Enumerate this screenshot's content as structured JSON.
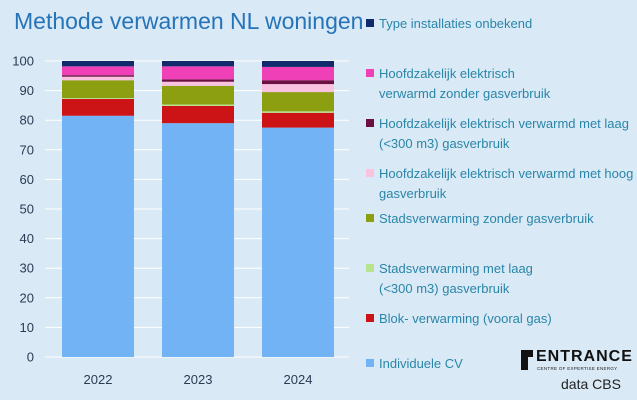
{
  "title": "Methode verwarmen NL woningen",
  "source": "data CBS",
  "logo": {
    "name": "ENTRANCE",
    "tagline": "CENTRE OF EXPERTISE ENERGY"
  },
  "chart_data": {
    "type": "bar",
    "stacked": true,
    "categories": [
      "2022",
      "2023",
      "2024"
    ],
    "ylim": [
      0,
      100
    ],
    "yticks": [
      0,
      10,
      20,
      30,
      40,
      50,
      60,
      70,
      80,
      90,
      100
    ],
    "grid": true,
    "legend_position": "right",
    "series": [
      {
        "name": "Individuele CV",
        "color": "#72b3f6",
        "values": [
          81.5,
          79,
          77.5
        ]
      },
      {
        "name": "Blok- verwarming  (vooral gas)",
        "color": "#cc1417",
        "values": [
          5.7,
          5.8,
          5
        ]
      },
      {
        "name": "Stadsverwarming met laag (<300 m3) gasverbruik",
        "color": "#b9e38f",
        "values": [
          0.3,
          0.5,
          0.5
        ]
      },
      {
        "name": "Stadsverwarming zonder gasverbruik",
        "color": "#8c9f10",
        "values": [
          6,
          6.3,
          6.5
        ]
      },
      {
        "name": "Hoofdzakelijk elektrisch verwarmd met hoog gasverbruik",
        "color": "#f9c2de",
        "values": [
          1.2,
          1.4,
          2.7
        ]
      },
      {
        "name": "Hoofdzakelijk elektrisch verwarmd met laag (<300 m3) gasverbruik",
        "color": "#6b1040",
        "values": [
          0.5,
          0.8,
          1.3
        ]
      },
      {
        "name": "Hoofdzakelijk elektrisch verwarmd zonder gasverbruik",
        "color": "#f040b8",
        "values": [
          3,
          4.4,
          4.5
        ]
      },
      {
        "name": "Type installaties onbekend",
        "color": "#102a6b",
        "values": [
          1.8,
          1.8,
          2
        ]
      }
    ]
  }
}
